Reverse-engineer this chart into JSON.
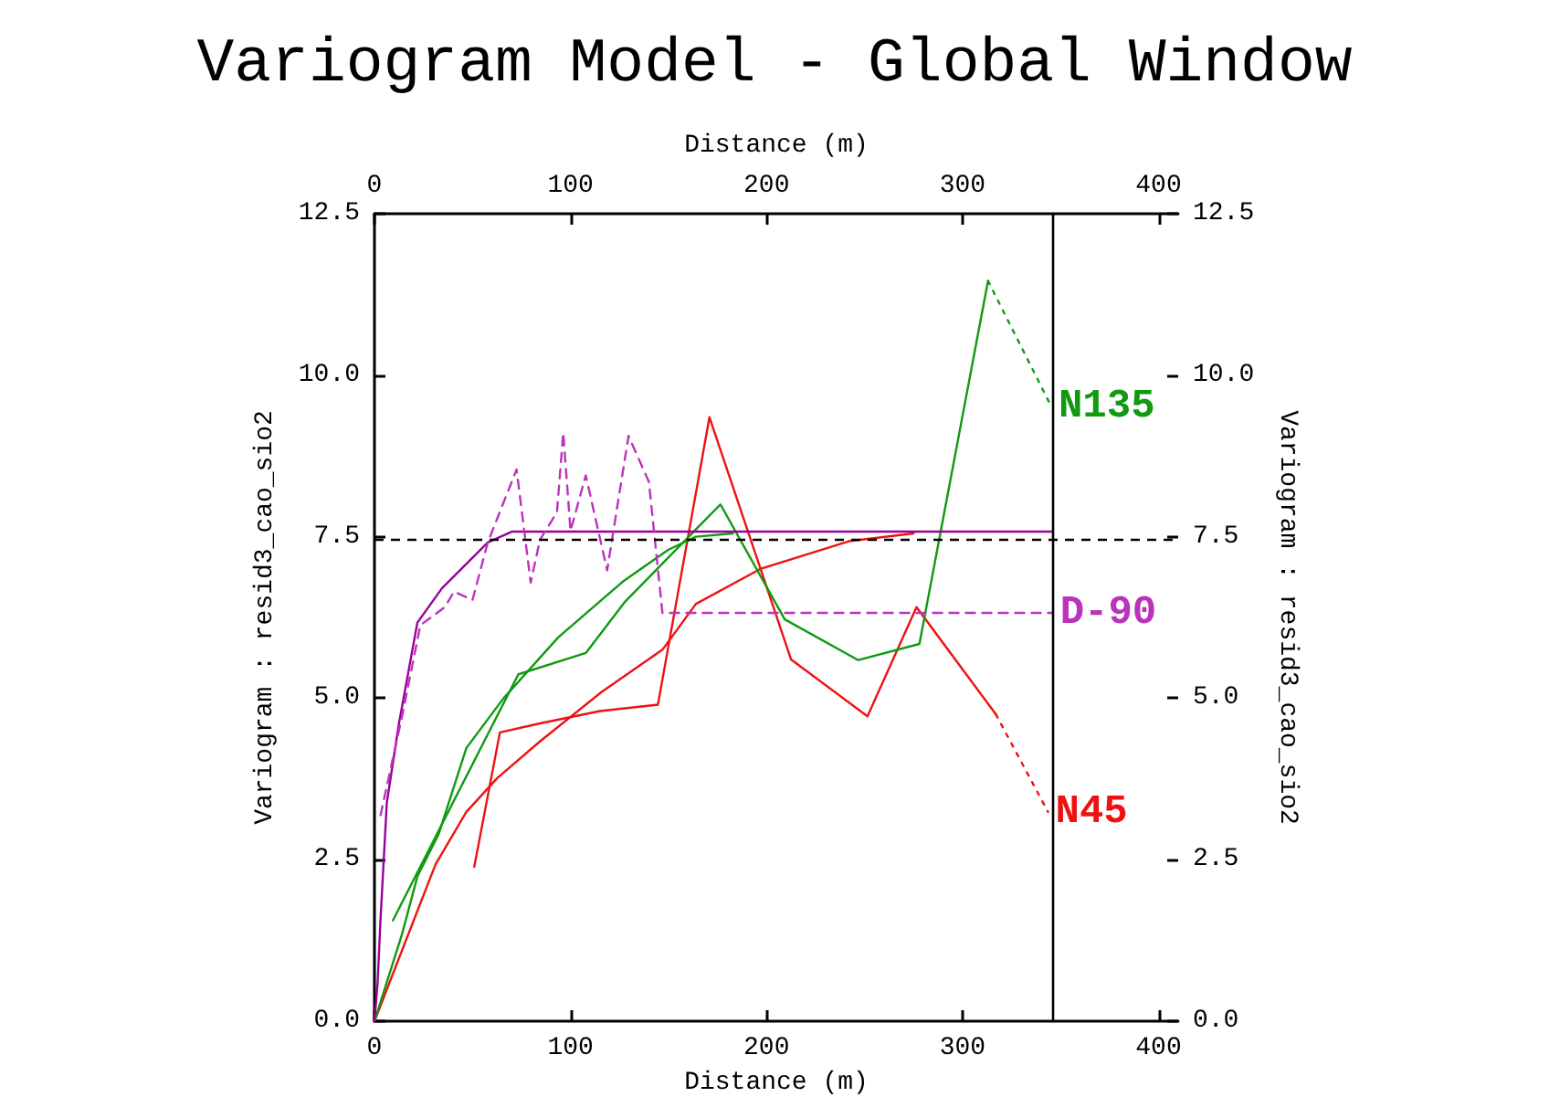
{
  "chart_data": {
    "type": "line",
    "title": "Variogram Model - Global Window",
    "xlabel": "Distance (m)",
    "x2label": "Distance (m)",
    "ylabel": "Variogram : resid3_cao_sio2",
    "y2label": "Variogram : resid3_cao_sio2",
    "xlim": [
      0,
      410
    ],
    "xticks": [
      0,
      100,
      200,
      300,
      400
    ],
    "x2lim": [
      0,
      410
    ],
    "x2ticks": [
      0,
      100,
      200,
      300,
      400
    ],
    "ylim": [
      0,
      12.5
    ],
    "yticks": [
      {
        "value": 0,
        "label": "0.0"
      },
      2.5,
      {
        "value": 5,
        "label": "5.0"
      },
      7.5,
      {
        "value": 10,
        "label": "10.0"
      },
      12.5
    ],
    "y2lim": [
      0,
      12.5
    ],
    "y2ticks": [
      {
        "value": 0,
        "label": "0.0"
      },
      2.5,
      {
        "value": 5,
        "label": "5.0"
      },
      7.5,
      {
        "value": 10,
        "label": "10.0"
      },
      12.5
    ],
    "grid": false,
    "legend": false,
    "marker": "none",
    "series": [
      {
        "color": "#ee1111",
        "line_style": "solid",
        "x": [
          0,
          31.2,
          46.9,
          62.5,
          84.4,
          115.6,
          146.9,
          164,
          196.8,
          242,
          275
        ],
        "values": [
          0,
          2.43,
          3.24,
          3.76,
          4.33,
          5.09,
          5.75,
          6.46,
          7.0,
          7.43,
          7.55
        ]
      },
      {
        "color": "#ee1111",
        "line_style": "solid",
        "x": [
          50.9,
          64,
          84.4,
          115,
          144.6,
          170.9,
          212.5,
          251.5,
          276.5,
          317
        ],
        "values": [
          2.39,
          4.47,
          4.61,
          4.8,
          4.9,
          9.35,
          5.6,
          4.72,
          6.41,
          4.75
        ]
      },
      {
        "name": "N45",
        "color": "#ee1111",
        "line_style": "dotted",
        "x": [
          317,
          343.6
        ],
        "values": [
          4.75,
          3.24
        ]
      },
      {
        "color": "#119911",
        "line_style": "solid",
        "x": [
          0,
          14,
          21.9,
          32.8,
          46.9,
          65.6,
          93.7,
          126.5,
          150,
          164,
          182.8
        ],
        "values": [
          0,
          1.34,
          2.24,
          2.9,
          4.23,
          4.99,
          5.94,
          6.8,
          7.3,
          7.5,
          7.55
        ]
      },
      {
        "color": "#119911",
        "line_style": "solid",
        "x": [
          9.4,
          73.4,
          107.8,
          128,
          176.5,
          209.3,
          246.8,
          278,
          313
        ],
        "values": [
          1.56,
          5.37,
          5.7,
          6.5,
          8.0,
          6.22,
          5.59,
          5.84,
          11.46
        ]
      },
      {
        "name": "N135",
        "color": "#119911",
        "line_style": "dotted",
        "x": [
          313,
          345.2
        ],
        "values": [
          11.46,
          9.52
        ]
      },
      {
        "color": "#990099",
        "line_style": "solid",
        "x": [
          0,
          1.6,
          3.1,
          6.3,
          12.5,
          21.9,
          34.4,
          57.8,
          70.3,
          346
        ],
        "values": [
          0,
          0.59,
          1.58,
          3.38,
          4.61,
          6.17,
          6.7,
          7.41,
          7.58,
          7.58
        ]
      },
      {
        "name": "D-90",
        "color": "#bb33bb",
        "line_style": "dashed",
        "x": [
          3.1,
          14,
          23.4,
          35.9,
          40.6,
          50,
          57.8,
          72.5,
          79.7,
          84.4,
          93.1,
          96.3,
          100,
          107.8,
          118.7,
          129.6,
          140,
          146.9,
          346
        ],
        "values": [
          3.19,
          4.71,
          6.13,
          6.41,
          6.65,
          6.52,
          7.41,
          8.54,
          6.79,
          7.45,
          7.88,
          9.11,
          7.59,
          8.45,
          6.98,
          9.06,
          8.35,
          6.32,
          6.32
        ]
      }
    ],
    "ref_lines": [
      {
        "axis": "y",
        "value": 7.45,
        "color": "#000000",
        "line_style": "dashed"
      },
      {
        "axis": "x",
        "value": 346,
        "color": "#000000",
        "line_style": "solid"
      }
    ]
  }
}
